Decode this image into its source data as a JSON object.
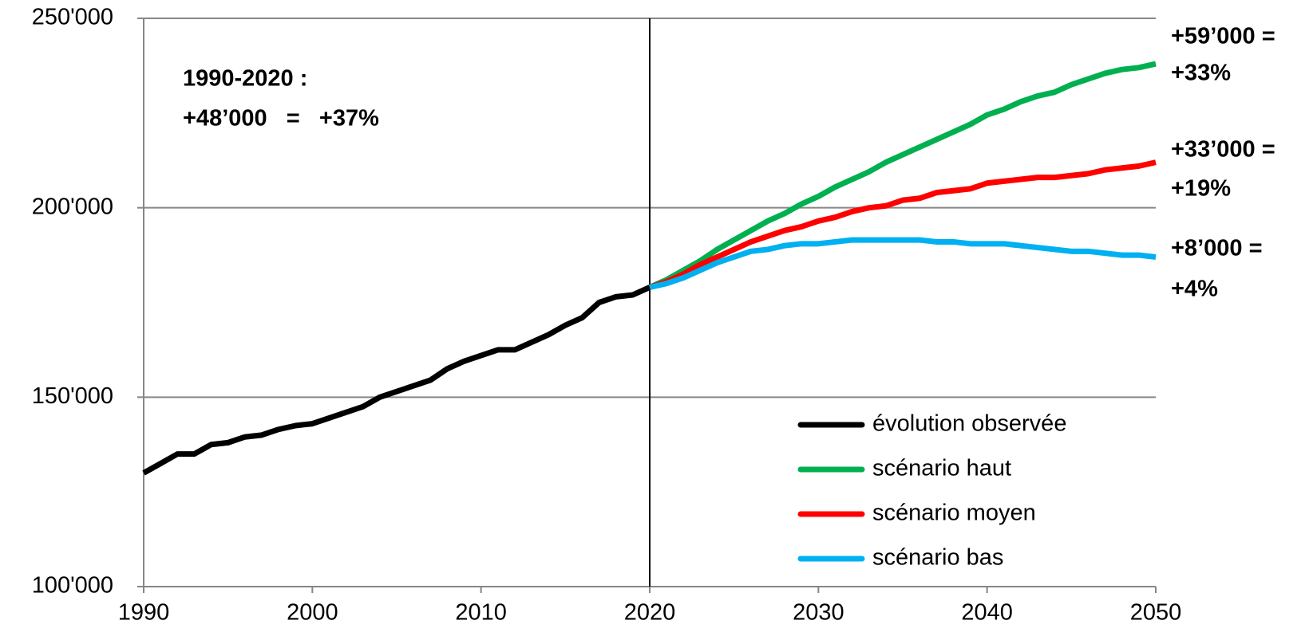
{
  "chart_data": {
    "type": "line",
    "x": [
      1990,
      1991,
      1992,
      1993,
      1994,
      1995,
      1996,
      1997,
      1998,
      1999,
      2000,
      2001,
      2002,
      2003,
      2004,
      2005,
      2006,
      2007,
      2008,
      2009,
      2010,
      2011,
      2012,
      2013,
      2014,
      2015,
      2016,
      2017,
      2018,
      2019,
      2020,
      2021,
      2022,
      2023,
      2024,
      2025,
      2026,
      2027,
      2028,
      2029,
      2030,
      2031,
      2032,
      2033,
      2034,
      2035,
      2036,
      2037,
      2038,
      2039,
      2040,
      2041,
      2042,
      2043,
      2044,
      2045,
      2046,
      2047,
      2048,
      2049,
      2050
    ],
    "series": [
      {
        "name": "évolution observée",
        "color": "#000000",
        "values": [
          130000,
          132500,
          135000,
          135000,
          137500,
          138000,
          139500,
          140000,
          141500,
          142500,
          143000,
          144500,
          146000,
          147500,
          150000,
          151500,
          153000,
          154500,
          157500,
          159500,
          161000,
          162500,
          162500,
          164500,
          166500,
          169000,
          171000,
          175000,
          176500,
          177000,
          179000,
          null,
          null,
          null,
          null,
          null,
          null,
          null,
          null,
          null,
          null,
          null,
          null,
          null,
          null,
          null,
          null,
          null,
          null,
          null,
          null,
          null,
          null,
          null,
          null,
          null,
          null,
          null,
          null,
          null,
          null
        ]
      },
      {
        "name": "scénario haut",
        "color": "#00b050",
        "values": [
          null,
          null,
          null,
          null,
          null,
          null,
          null,
          null,
          null,
          null,
          null,
          null,
          null,
          null,
          null,
          null,
          null,
          null,
          null,
          null,
          null,
          null,
          null,
          null,
          null,
          null,
          null,
          null,
          null,
          null,
          179000,
          181000,
          183500,
          186000,
          189000,
          191500,
          194000,
          196500,
          198500,
          201000,
          203000,
          205500,
          207500,
          209500,
          212000,
          214000,
          216000,
          218000,
          220000,
          222000,
          224500,
          226000,
          228000,
          229500,
          230500,
          232500,
          234000,
          235500,
          236500,
          237000,
          238000
        ]
      },
      {
        "name": "scénario moyen",
        "color": "#ff0000",
        "values": [
          null,
          null,
          null,
          null,
          null,
          null,
          null,
          null,
          null,
          null,
          null,
          null,
          null,
          null,
          null,
          null,
          null,
          null,
          null,
          null,
          null,
          null,
          null,
          null,
          null,
          null,
          null,
          null,
          null,
          null,
          179000,
          180500,
          182500,
          185000,
          187000,
          189000,
          191000,
          192500,
          194000,
          195000,
          196500,
          197500,
          199000,
          200000,
          200500,
          202000,
          202500,
          204000,
          204500,
          205000,
          206500,
          207000,
          207500,
          208000,
          208000,
          208500,
          209000,
          210000,
          210500,
          211000,
          212000
        ]
      },
      {
        "name": "scénario bas",
        "color": "#00b0f0",
        "values": [
          null,
          null,
          null,
          null,
          null,
          null,
          null,
          null,
          null,
          null,
          null,
          null,
          null,
          null,
          null,
          null,
          null,
          null,
          null,
          null,
          null,
          null,
          null,
          null,
          null,
          null,
          null,
          null,
          null,
          null,
          179000,
          180000,
          181500,
          183500,
          185500,
          187000,
          188500,
          189000,
          190000,
          190500,
          190500,
          191000,
          191500,
          191500,
          191500,
          191500,
          191500,
          191000,
          191000,
          190500,
          190500,
          190500,
          190000,
          189500,
          189000,
          188500,
          188500,
          188000,
          187500,
          187500,
          187000
        ]
      }
    ],
    "xlim": [
      1990,
      2050
    ],
    "xticks": [
      1990,
      2000,
      2010,
      2020,
      2030,
      2040,
      2050
    ],
    "ylim": [
      100000,
      250000
    ],
    "yticks": [
      {
        "value": 100000,
        "label": "100'000"
      },
      {
        "value": 150000,
        "label": "150'000"
      },
      {
        "value": 200000,
        "label": "200'000"
      },
      {
        "value": 250000,
        "label": "250'000"
      }
    ],
    "grid": true,
    "vline": 2020,
    "legend": "lower right",
    "annotations": [
      {
        "lines": [
          "1990-2020 :",
          "+48’000   =   +37%"
        ]
      },
      {
        "lines": [
          "+59’000 =",
          "+33%"
        ]
      },
      {
        "lines": [
          "+33’000 =",
          "+19%"
        ]
      },
      {
        "lines": [
          "+8’000 =",
          "+4%"
        ]
      }
    ]
  }
}
